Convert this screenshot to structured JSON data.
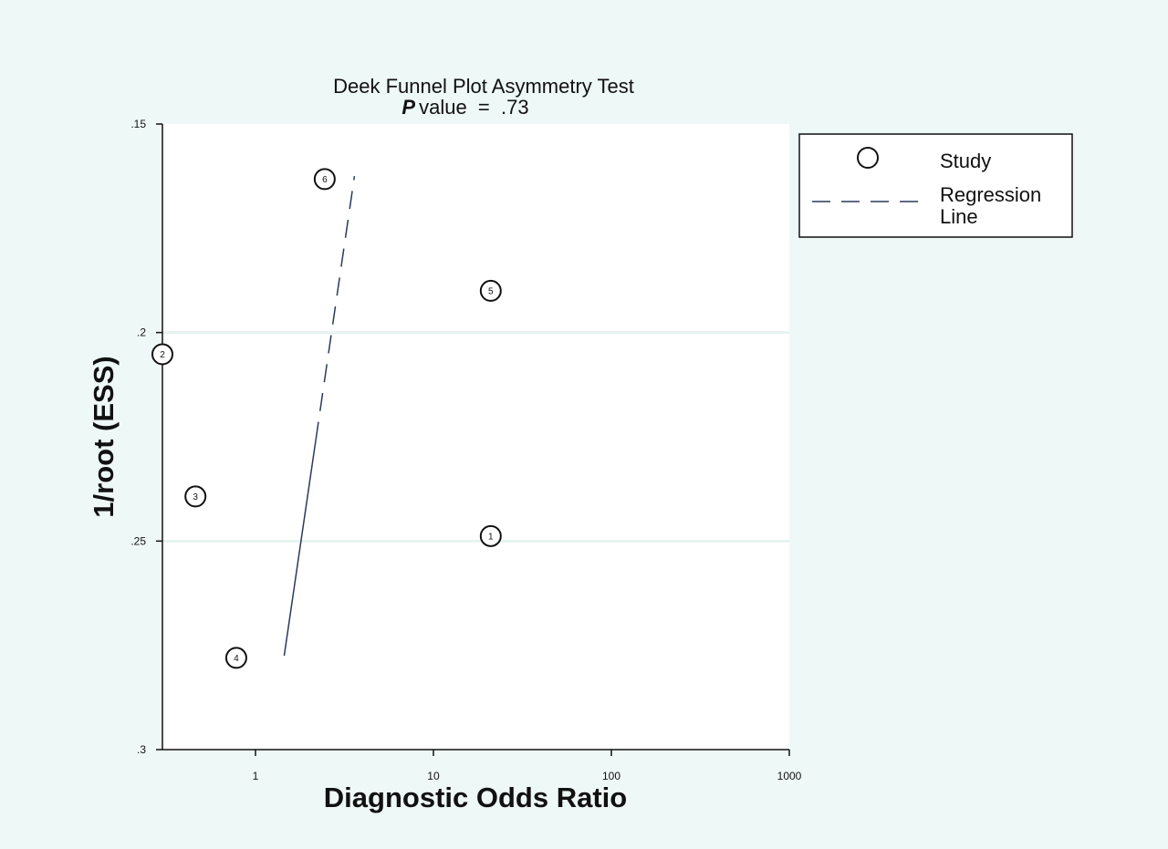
{
  "chart_data": {
    "type": "scatter",
    "title": "Deek Funnel Plot Asymmetry Test",
    "subtitle": {
      "p_label": "P",
      "rest": "value  =  .73"
    },
    "xlabel": "Diagnostic Odds Ratio",
    "ylabel": "1/root (ESS)",
    "x_scale": "log",
    "xlim": [
      0.3,
      1000
    ],
    "ylim": [
      0.15,
      0.3
    ],
    "y_inverted": true,
    "x_ticks": [
      {
        "value": 1,
        "label": "1"
      },
      {
        "value": 10,
        "label": "10"
      },
      {
        "value": 100,
        "label": "100"
      },
      {
        "value": 1000,
        "label": "1000"
      }
    ],
    "y_ticks": [
      {
        "value": 0.15,
        "label": ".15"
      },
      {
        "value": 0.2,
        "label": ".2"
      },
      {
        "value": 0.25,
        "label": ".25"
      },
      {
        "value": 0.3,
        "label": ".3"
      }
    ],
    "grid": {
      "horizontal": true,
      "vertical": false
    },
    "studies": [
      {
        "id": "1",
        "x": 21,
        "y": 0.2488
      },
      {
        "id": "2",
        "x": 0.3,
        "y": 0.2052
      },
      {
        "id": "3",
        "x": 0.46,
        "y": 0.2393
      },
      {
        "id": "4",
        "x": 0.78,
        "y": 0.278
      },
      {
        "id": "5",
        "x": 21,
        "y": 0.19
      },
      {
        "id": "6",
        "x": 2.45,
        "y": 0.1632
      }
    ],
    "regression_line": {
      "points": [
        {
          "x": 1.45,
          "y": 0.2775
        },
        {
          "x": 3.6,
          "y": 0.1625
        }
      ]
    },
    "legend": {
      "position": "right",
      "items": [
        {
          "key": "study",
          "label": "Study",
          "symbol": "hollow-circle"
        },
        {
          "key": "regression",
          "label": "Regression Line",
          "symbol": "dashed-line"
        }
      ]
    },
    "colors": {
      "background": "#eef8f6",
      "plot_area": "#ffffff",
      "markers": "#111111",
      "regression_line": "#2a3a5c"
    }
  }
}
